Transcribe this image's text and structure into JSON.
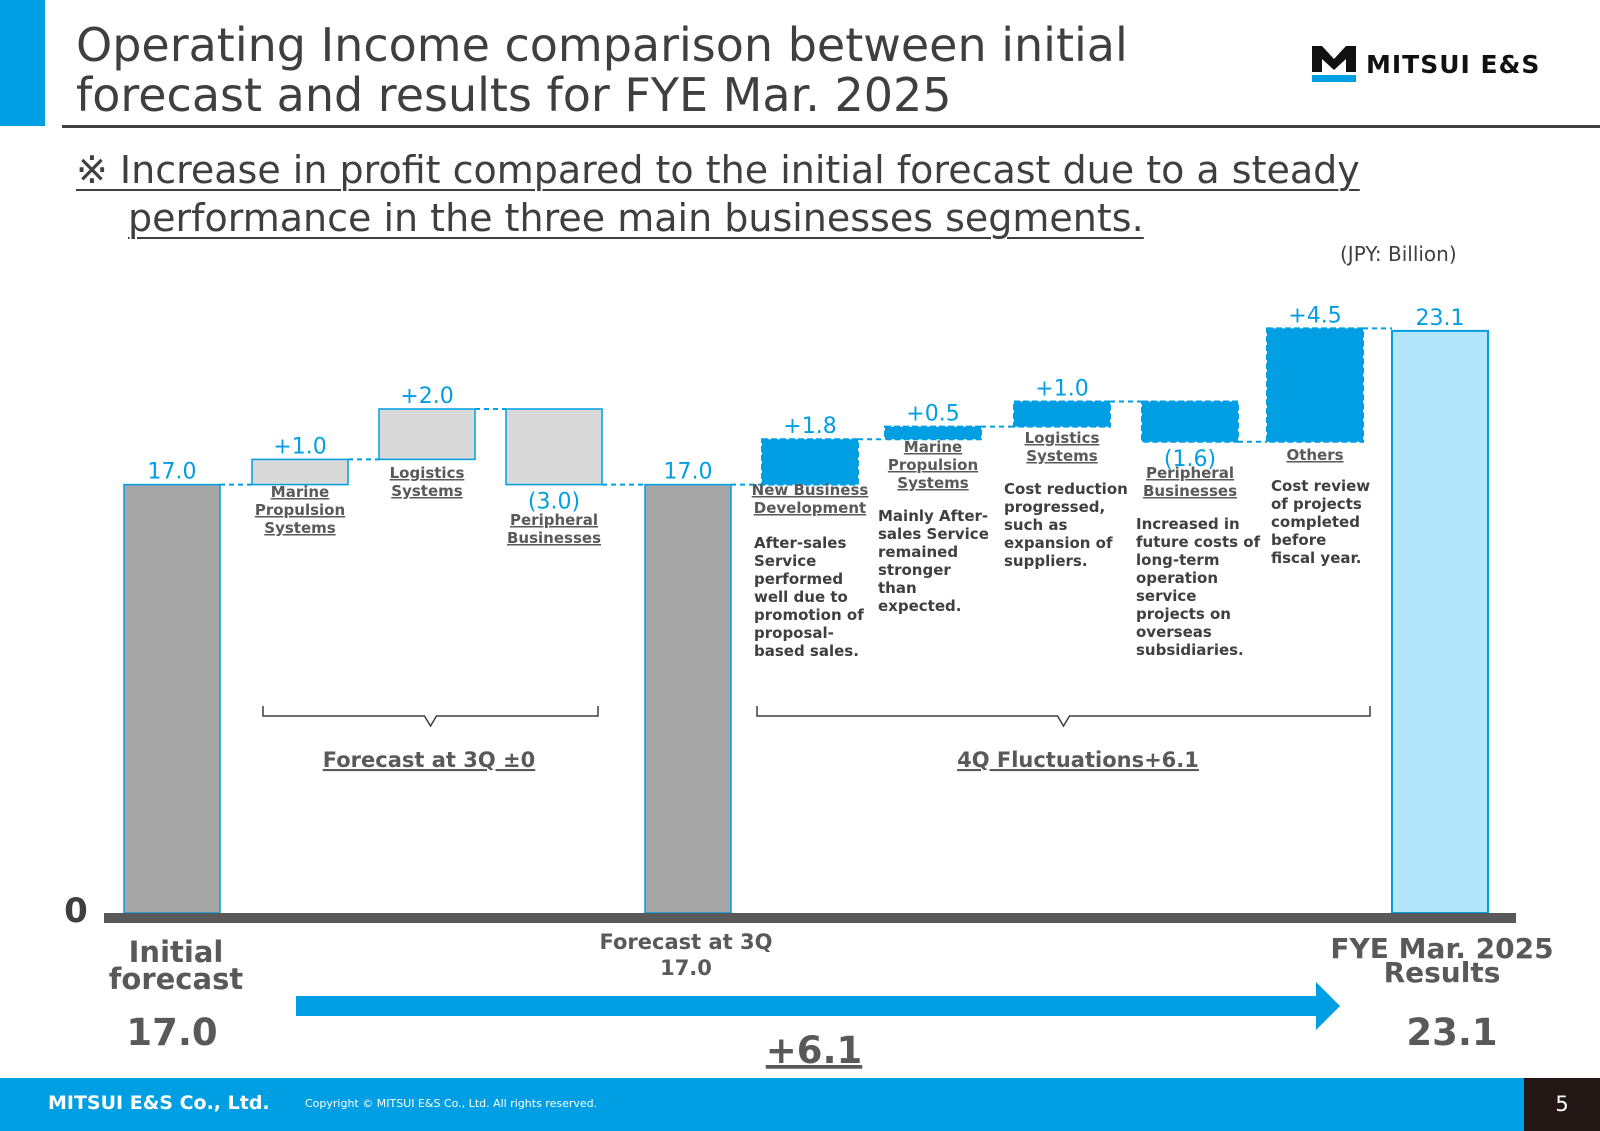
{
  "header": {
    "title": "Operating Income comparison between initial forecast and results for FYE Mar. 2025",
    "title_line1": "Operating Income comparison between initial",
    "title_line2": "forecast and results for FYE Mar. 2025",
    "logo_text": "MITSUI E&S"
  },
  "subtitle": {
    "line1": "※ Increase in profit compared to the initial forecast due to a steady",
    "line2": "performance in the three main businesses segments."
  },
  "unit_label": "(JPY: Billion)",
  "colors": {
    "accent": "#009fe3",
    "gray_bar": "#a6a6a6",
    "light_gray_bar": "#d9d9d9",
    "result_bar": "#b3e6fb",
    "text": "#3f3f3f"
  },
  "chart_data": {
    "type": "waterfall",
    "ylim": [
      0,
      24
    ],
    "zero_label": "0",
    "bars": [
      {
        "id": "initial",
        "kind": "total",
        "value": 17.0,
        "label": "17.0"
      },
      {
        "id": "q3-marine",
        "kind": "delta-forecast",
        "value": 1.0,
        "label": "+1.0",
        "category": "Marine Propulsion Systems"
      },
      {
        "id": "q3-logistics",
        "kind": "delta-forecast",
        "value": 2.0,
        "label": "+2.0",
        "category": "Logistics Systems"
      },
      {
        "id": "q3-peripheral",
        "kind": "delta-forecast",
        "value": -3.0,
        "label": "(3.0)",
        "category": "Peripheral Businesses"
      },
      {
        "id": "forecast-3q",
        "kind": "total",
        "value": 17.0,
        "label": "17.0"
      },
      {
        "id": "q4-newbiz",
        "kind": "delta-actual",
        "value": 1.8,
        "label": "+1.8",
        "category": "New Business Development",
        "note": [
          "After-sales",
          "Service",
          "performed",
          "well due to",
          "promotion of",
          "proposal-",
          "based sales."
        ]
      },
      {
        "id": "q4-marine",
        "kind": "delta-actual",
        "value": 0.5,
        "label": "+0.5",
        "category": "Marine Propulsion Systems",
        "note": [
          "Mainly After-",
          "sales Service",
          "remained",
          "stronger",
          "than",
          "expected."
        ]
      },
      {
        "id": "q4-logistics",
        "kind": "delta-actual",
        "value": 1.0,
        "label": "+1.0",
        "category": "Logistics Systems",
        "note": [
          "Cost reduction",
          "progressed,",
          "such as",
          "expansion of",
          "suppliers."
        ]
      },
      {
        "id": "q4-peripheral",
        "kind": "delta-actual",
        "value": -1.6,
        "label": "(1.6)",
        "category": "Peripheral Businesses",
        "note": [
          "Increased in",
          "future costs of",
          "long-term",
          "operation",
          "service",
          "projects on",
          "overseas",
          "subsidiaries."
        ]
      },
      {
        "id": "q4-others",
        "kind": "delta-actual",
        "value": 4.5,
        "label": "+4.5",
        "category": "Others",
        "note": [
          "Cost review",
          "of projects",
          "completed",
          "before",
          "fiscal year."
        ]
      },
      {
        "id": "result",
        "kind": "result",
        "value": 23.1,
        "label": "23.1"
      }
    ],
    "groups": [
      {
        "label": "Forecast at 3Q ±0"
      },
      {
        "label": "4Q Fluctuations+6.1"
      }
    ],
    "bottom_labels": {
      "initial_name": [
        "Initial",
        "forecast"
      ],
      "initial_value": "17.0",
      "forecast_name": "Forecast at 3Q",
      "forecast_value": "17.0",
      "result_name": [
        "FYE Mar. 2025",
        "Results"
      ],
      "result_value": "23.1",
      "total_change": "+6.1"
    }
  },
  "footer": {
    "company": "MITSUI E&S Co., Ltd.",
    "copyright": "Copyright © MITSUI E&S Co., Ltd. All rights reserved.",
    "page_number": "5"
  }
}
